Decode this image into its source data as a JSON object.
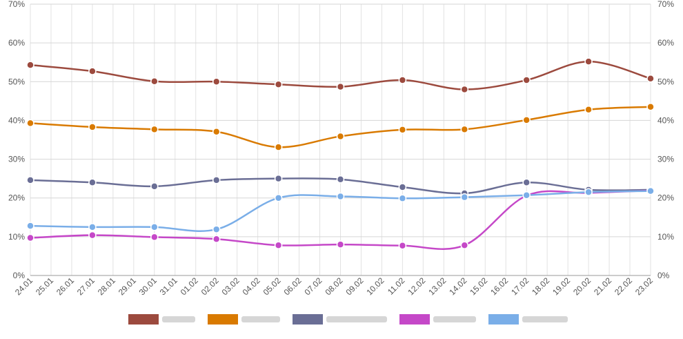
{
  "chart_data": {
    "type": "line",
    "title": "",
    "xlabel": "",
    "ylabel": "",
    "ylim": [
      0,
      70
    ],
    "y_ticks": [
      "0%",
      "10%",
      "20%",
      "30%",
      "40%",
      "50%",
      "60%",
      "70%"
    ],
    "grid": true,
    "legend_position": "bottom",
    "categories": [
      "24.01",
      "25.01",
      "26.01",
      "27.01",
      "28.01",
      "29.01",
      "30.01",
      "31.01",
      "01.02",
      "02.02",
      "03.02",
      "04.02",
      "05.02",
      "06.02",
      "07.02",
      "08.02",
      "09.02",
      "10.02",
      "11.02",
      "12.02",
      "13.02",
      "14.02",
      "15.02",
      "16.02",
      "17.02",
      "18.02",
      "19.02",
      "20.02",
      "21.02",
      "22.02",
      "23.02"
    ],
    "series": [
      {
        "color": "#9c4a3e",
        "points": [
          [
            "24.01",
            54.3
          ],
          [
            "27.01",
            52.7
          ],
          [
            "30.01",
            50.1
          ],
          [
            "02.02",
            50.0
          ],
          [
            "05.02",
            49.3
          ],
          [
            "08.02",
            48.7
          ],
          [
            "11.02",
            50.4
          ],
          [
            "14.02",
            48.0
          ],
          [
            "17.02",
            50.4
          ],
          [
            "20.02",
            55.2
          ],
          [
            "23.02",
            50.8
          ]
        ]
      },
      {
        "color": "#d97a00",
        "points": [
          [
            "24.01",
            39.3
          ],
          [
            "27.01",
            38.3
          ],
          [
            "30.01",
            37.7
          ],
          [
            "02.02",
            37.1
          ],
          [
            "05.02",
            33.1
          ],
          [
            "08.02",
            35.9
          ],
          [
            "11.02",
            37.6
          ],
          [
            "14.02",
            37.7
          ],
          [
            "17.02",
            40.1
          ],
          [
            "20.02",
            42.8
          ],
          [
            "23.02",
            43.5
          ]
        ]
      },
      {
        "color": "#6a6e95",
        "points": [
          [
            "24.01",
            24.6
          ],
          [
            "27.01",
            24.0
          ],
          [
            "30.01",
            23.0
          ],
          [
            "02.02",
            24.6
          ],
          [
            "05.02",
            25.0
          ],
          [
            "08.02",
            24.8
          ],
          [
            "11.02",
            22.8
          ],
          [
            "14.02",
            21.2
          ],
          [
            "17.02",
            24.0
          ],
          [
            "20.02",
            22.1
          ],
          [
            "23.02",
            22.1
          ]
        ]
      },
      {
        "color": "#c548c8",
        "points": [
          [
            "24.01",
            9.7
          ],
          [
            "27.01",
            10.4
          ],
          [
            "30.01",
            9.9
          ],
          [
            "02.02",
            9.4
          ],
          [
            "05.02",
            7.8
          ],
          [
            "08.02",
            8.0
          ],
          [
            "11.02",
            7.7
          ],
          [
            "14.02",
            7.8
          ],
          [
            "17.02",
            20.6
          ],
          [
            "20.02",
            21.3
          ],
          [
            "23.02",
            21.9
          ]
        ]
      },
      {
        "color": "#7aaee8",
        "points": [
          [
            "24.01",
            12.8
          ],
          [
            "27.01",
            12.5
          ],
          [
            "30.01",
            12.5
          ],
          [
            "02.02",
            11.9
          ],
          [
            "05.02",
            20.0
          ],
          [
            "08.02",
            20.4
          ],
          [
            "11.02",
            19.9
          ],
          [
            "14.02",
            20.2
          ],
          [
            "17.02",
            20.7
          ],
          [
            "20.02",
            21.5
          ],
          [
            "23.02",
            21.8
          ]
        ]
      }
    ]
  }
}
